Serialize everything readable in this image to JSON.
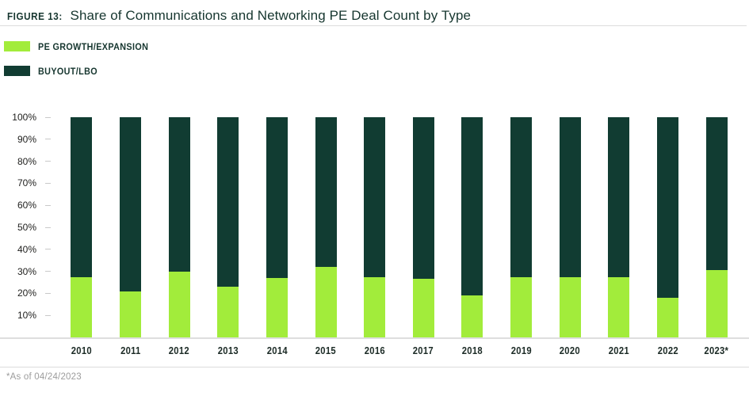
{
  "header": {
    "figure_label": "FIGURE 13:",
    "title": "Share of Communications and Networking PE Deal Count by Type"
  },
  "legend": [
    {
      "label": "PE GROWTH/EXPANSION",
      "color": "#a2ec3b",
      "swatch_icon": "legend-swatch-green"
    },
    {
      "label": "BUYOUT/LBO",
      "color": "#113c32",
      "swatch_icon": "legend-swatch-dark-teal"
    }
  ],
  "footnote": "*As of 04/24/2023",
  "chart_data": {
    "type": "bar",
    "stacked": true,
    "title": "Share of Communications and Networking PE Deal Count by Type",
    "xlabel": "",
    "ylabel": "",
    "unit": "%",
    "ylim": [
      0,
      100
    ],
    "y_ticks": [
      100,
      90,
      80,
      70,
      60,
      50,
      40,
      30,
      20,
      10
    ],
    "grid": false,
    "legend_position": "top-left",
    "categories": [
      "2010",
      "2011",
      "2012",
      "2013",
      "2014",
      "2015",
      "2016",
      "2017",
      "2018",
      "2019",
      "2020",
      "2021",
      "2022",
      "2023*"
    ],
    "series": [
      {
        "name": "PE GROWTH/EXPANSION",
        "color": "#a2ec3b",
        "values": [
          27.5,
          21,
          30,
          23,
          27,
          32,
          27.5,
          26.5,
          19,
          27.5,
          27.5,
          27.5,
          18,
          30.5
        ]
      },
      {
        "name": "BUYOUT/LBO",
        "color": "#113c32",
        "values": [
          72.5,
          79,
          70,
          77,
          73,
          68,
          72.5,
          73.5,
          81,
          72.5,
          72.5,
          72.5,
          82,
          69.5
        ]
      }
    ]
  }
}
